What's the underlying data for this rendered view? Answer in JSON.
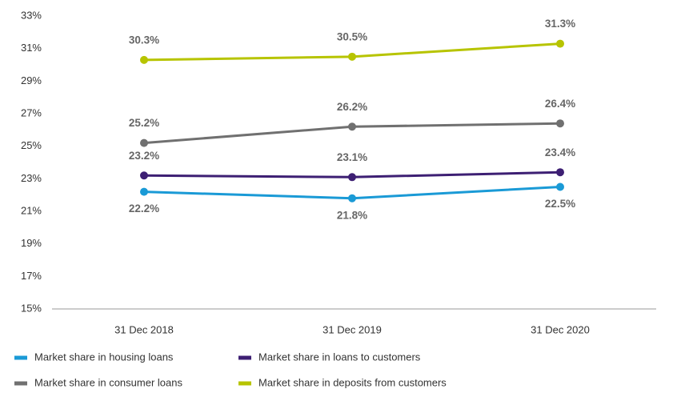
{
  "chart_data": {
    "type": "line",
    "categories": [
      "31 Dec 2018",
      "31 Dec 2019",
      "31 Dec 2020"
    ],
    "series": [
      {
        "name": "Market share in housing loans",
        "color": "#1a9ad6",
        "values": [
          22.2,
          21.8,
          22.5
        ],
        "value_labels": [
          "22.2%",
          "21.8%",
          "22.5%"
        ]
      },
      {
        "name": "Market share in loans to customers",
        "color": "#3d1f73",
        "values": [
          23.2,
          23.1,
          23.4
        ],
        "value_labels": [
          "23.2%",
          "23.1%",
          "23.4%"
        ]
      },
      {
        "name": "Market share in consumer loans",
        "color": "#707070",
        "values": [
          25.2,
          26.2,
          26.4
        ],
        "value_labels": [
          "25.2%",
          "26.2%",
          "26.4%"
        ]
      },
      {
        "name": "Market share in deposits from customers",
        "color": "#b7c400",
        "values": [
          30.3,
          30.5,
          31.3
        ],
        "value_labels": [
          "30.3%",
          "30.5%",
          "31.3%"
        ]
      }
    ],
    "ylim": [
      15,
      33
    ],
    "yticks": [
      {
        "value": 15,
        "label": "15%"
      },
      {
        "value": 17,
        "label": "17%"
      },
      {
        "value": 19,
        "label": "19%"
      },
      {
        "value": 21,
        "label": "21%"
      },
      {
        "value": 23,
        "label": "23%"
      },
      {
        "value": 25,
        "label": "25%"
      },
      {
        "value": 27,
        "label": "27%"
      },
      {
        "value": 29,
        "label": "29%"
      },
      {
        "value": 31,
        "label": "31%"
      },
      {
        "value": 33,
        "label": "33%"
      }
    ],
    "grid": false,
    "legend": "bottom"
  }
}
